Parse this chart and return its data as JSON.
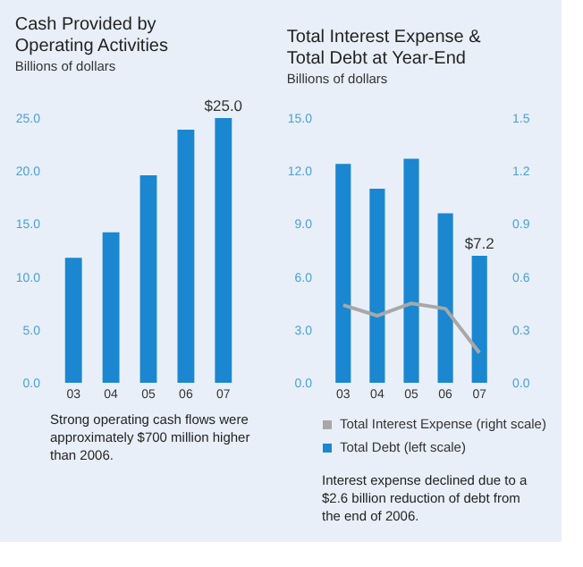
{
  "chart_data": [
    {
      "type": "bar",
      "title": "Cash Provided by Operating Activities",
      "subtitle": "Billions of dollars",
      "categories": [
        "03",
        "04",
        "05",
        "06",
        "07"
      ],
      "series": [
        {
          "color": "#1a87d0",
          "values": [
            11.8,
            14.2,
            19.6,
            23.9,
            25.0
          ],
          "value_labels": [
            null,
            null,
            null,
            null,
            "$25.0"
          ]
        }
      ],
      "ylim": [
        0,
        25
      ],
      "yticks": [
        {
          "value": 0,
          "label": "0.0"
        },
        {
          "value": 5,
          "label": "5.0"
        },
        {
          "value": 10,
          "label": "10.0"
        },
        {
          "value": 15,
          "label": "15.0"
        },
        {
          "value": 20,
          "label": "20.0"
        },
        {
          "value": 25,
          "label": "25.0"
        }
      ],
      "grid": false,
      "legend": false,
      "annotations": [
        "Strong operating cash flows were approximately $700 million higher than 2006."
      ]
    },
    {
      "type": "bar",
      "title": "Total Interest Expense & Total Debt at Year-End",
      "subtitle": "Billions of dollars",
      "categories": [
        "03",
        "04",
        "05",
        "06",
        "07"
      ],
      "series": [
        {
          "name": "Total Interest Expense (right scale)",
          "type": "line",
          "axis": "y2",
          "color": "#a8a8a8",
          "values": [
            0.44,
            0.38,
            0.45,
            0.42,
            0.17
          ]
        },
        {
          "name": "Total Debt (left scale)",
          "type": "bar",
          "color": "#1a87d0",
          "values": [
            12.4,
            11.0,
            12.7,
            9.6,
            7.2
          ],
          "value_labels": [
            null,
            null,
            null,
            null,
            "$7.2"
          ]
        }
      ],
      "ylim": [
        0,
        15
      ],
      "yticks": [
        {
          "value": 0,
          "label": "0.0"
        },
        {
          "value": 3,
          "label": "3.0"
        },
        {
          "value": 6,
          "label": "6.0"
        },
        {
          "value": 9,
          "label": "9.0"
        },
        {
          "value": 12,
          "label": "12.0"
        },
        {
          "value": 15,
          "label": "15.0"
        }
      ],
      "y2lim": [
        0,
        1.5
      ],
      "y2ticks": [
        {
          "value": 0,
          "label": "0.0"
        },
        0.3,
        0.6,
        0.9,
        1.2,
        1.5
      ],
      "grid": false,
      "legend": "bottom",
      "line_style": "solid",
      "marker": "none",
      "annotations": [
        "Interest expense declined due to a $2.6 billion reduction of debt from the end of 2006."
      ]
    }
  ]
}
